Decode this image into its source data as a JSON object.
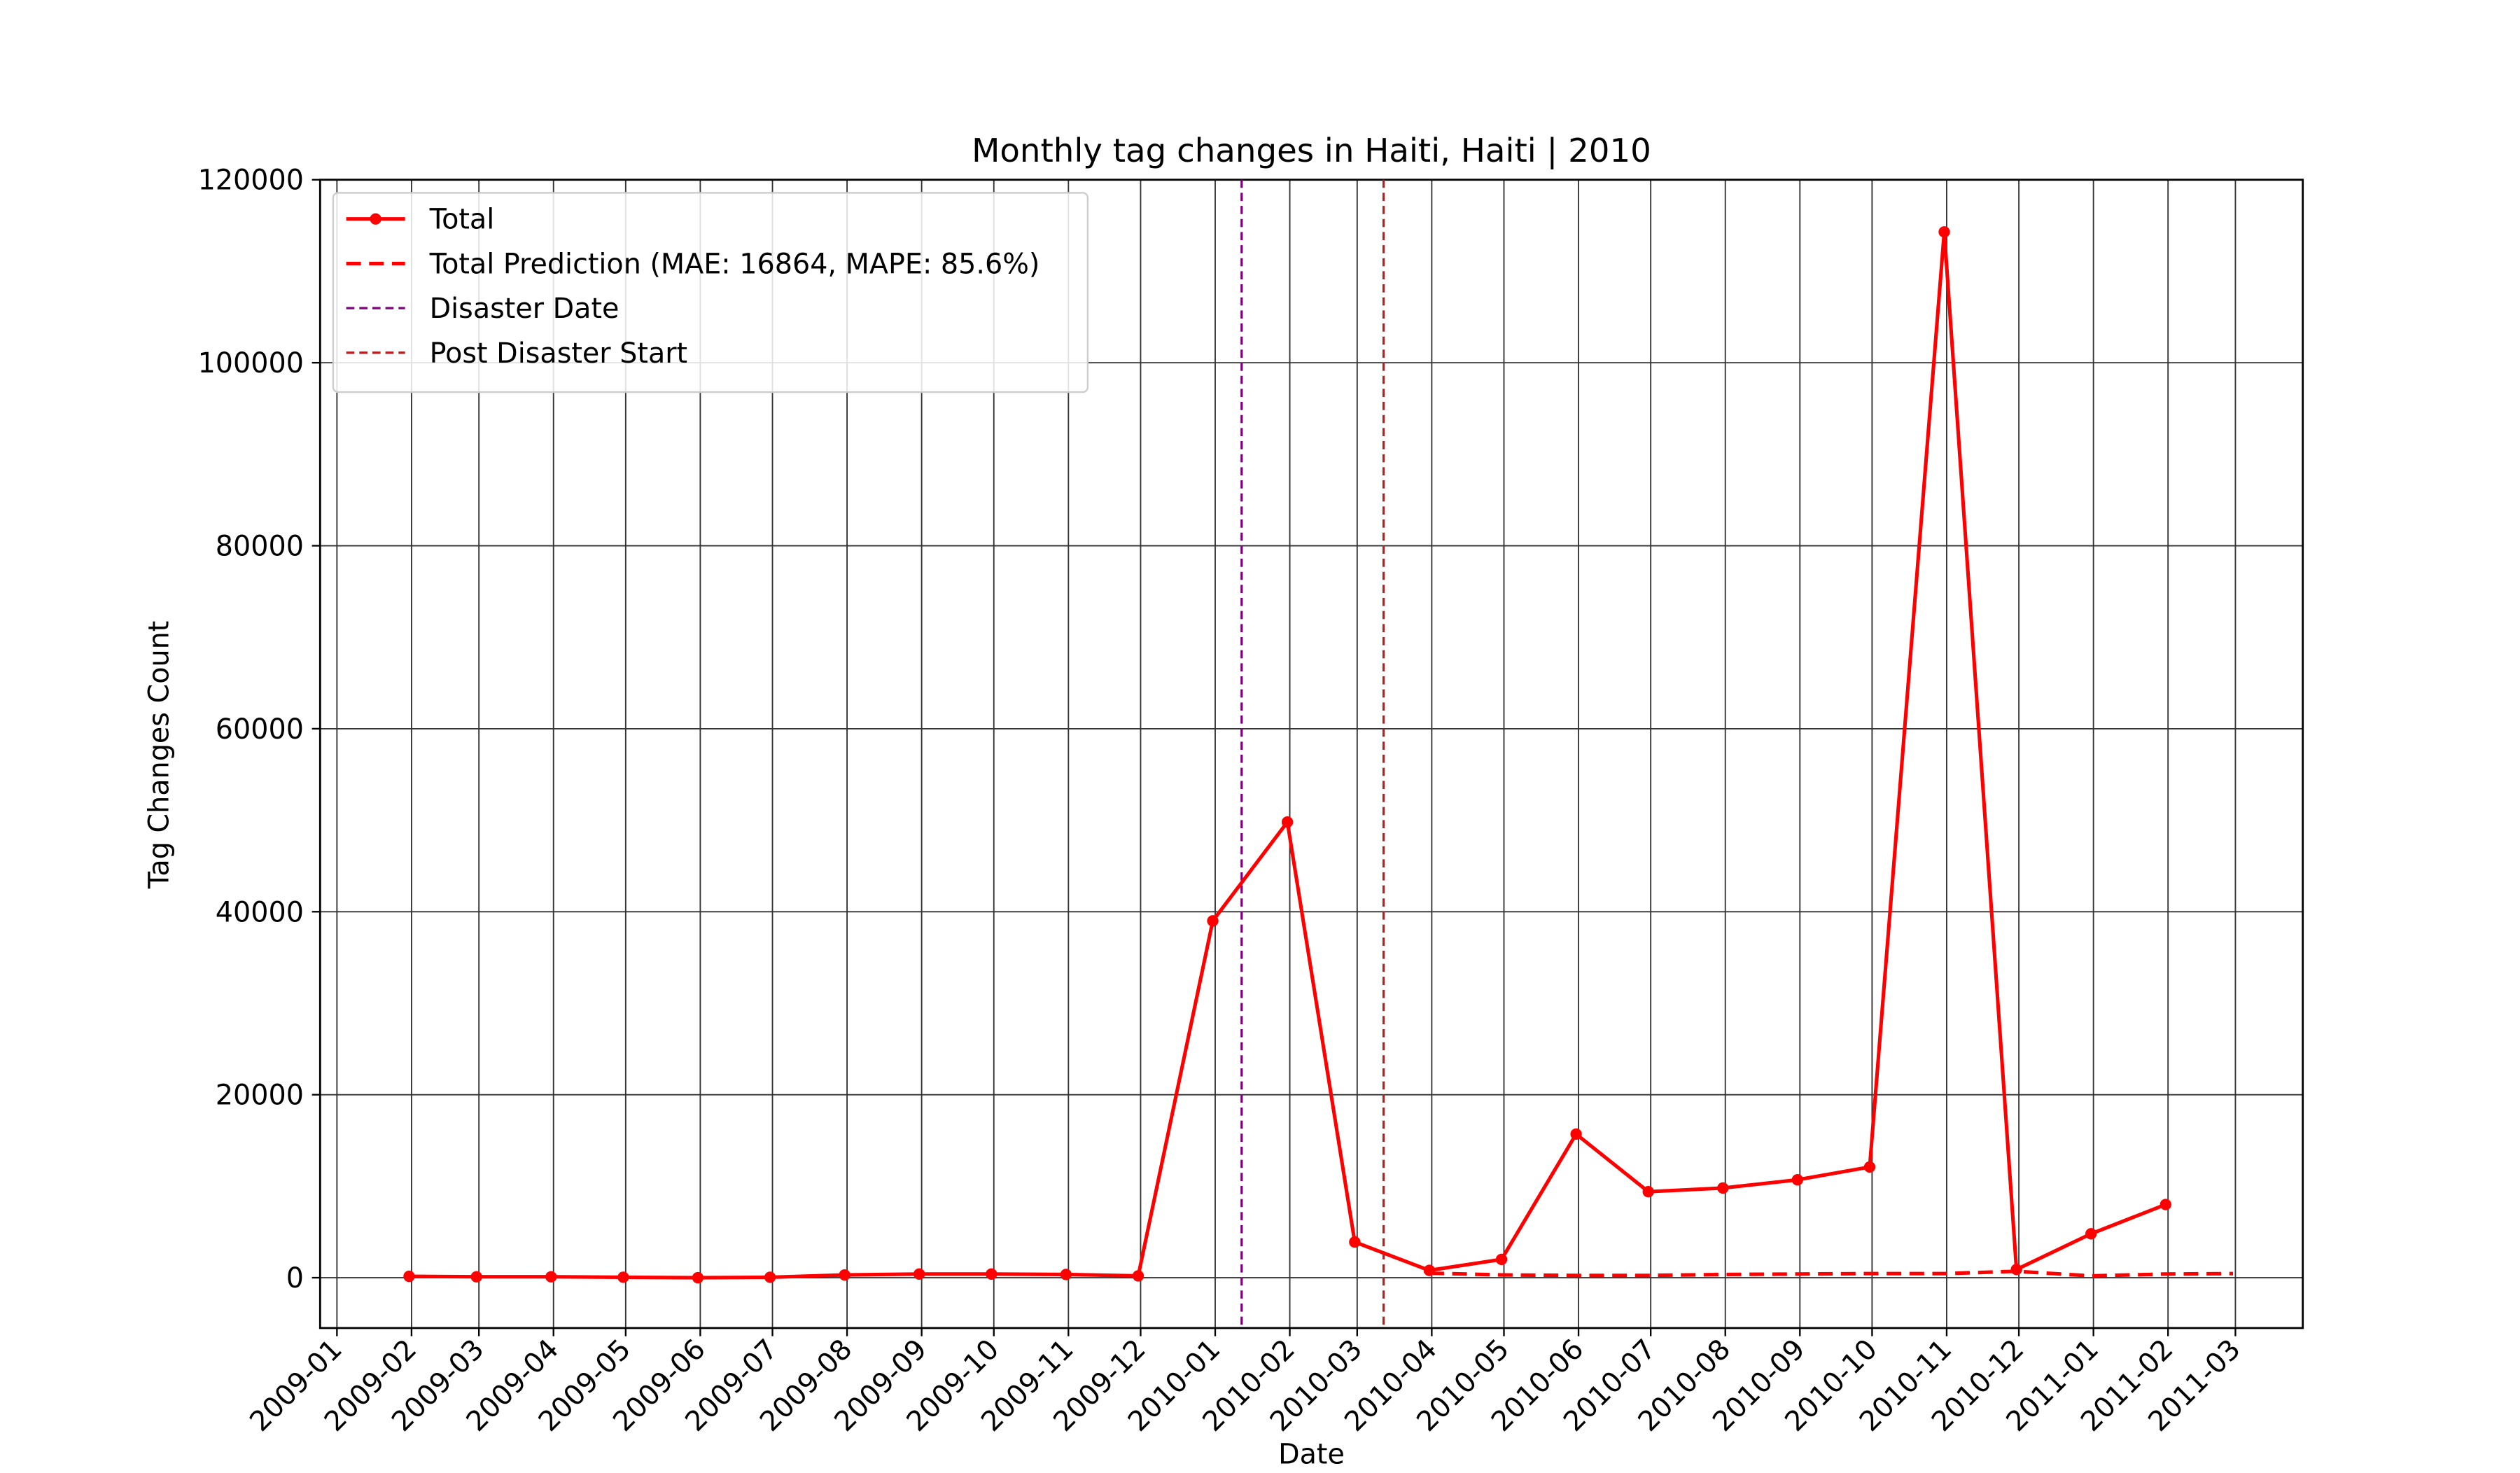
{
  "chart_data": {
    "type": "line",
    "title": "Monthly tag changes in Haiti, Haiti | 2010",
    "x_label": "Date",
    "y_label": "Tag Changes Count",
    "series": [
      {
        "name": "Total",
        "color": "#ff0000",
        "style": "solid",
        "marker": true,
        "x": [
          "2009-01",
          "2009-02",
          "2009-03",
          "2009-04",
          "2009-05",
          "2009-06",
          "2009-07",
          "2009-08",
          "2009-09",
          "2009-10",
          "2009-11",
          "2009-12",
          "2010-01",
          "2010-02",
          "2010-03",
          "2010-04",
          "2010-05",
          "2010-06",
          "2010-07",
          "2010-08",
          "2010-09",
          "2010-10",
          "2010-11",
          "2010-12",
          "2011-01"
        ],
        "values": [
          150,
          100,
          100,
          50,
          0,
          50,
          300,
          400,
          400,
          350,
          200,
          39000,
          49800,
          3900,
          800,
          2000,
          15700,
          9400,
          9800,
          10700,
          12100,
          114300,
          900,
          4800,
          8000
        ]
      },
      {
        "name": "Total Prediction (MAE: 16864, MAPE: 85.6%)",
        "color": "#ff0000",
        "style": "dashed",
        "marker": false,
        "x": [
          "2010-03",
          "2010-04",
          "2010-05",
          "2010-06",
          "2010-07",
          "2010-08",
          "2010-09",
          "2010-10",
          "2010-11",
          "2010-12",
          "2011-01",
          "2011-02"
        ],
        "values": [
          500,
          300,
          250,
          250,
          350,
          400,
          450,
          450,
          700,
          200,
          400,
          450
        ]
      }
    ],
    "vlines": [
      {
        "label": "Disaster Date",
        "x": "2010-01-12",
        "color": "#800080"
      },
      {
        "label": "Post Disaster Start",
        "x": "2010-03-12",
        "color": "#b22222"
      }
    ],
    "xlim": [
      "2008-12-25",
      "2011-03-29"
    ],
    "xticks": [
      "2009-01",
      "2009-02",
      "2009-03",
      "2009-04",
      "2009-05",
      "2009-06",
      "2009-07",
      "2009-08",
      "2009-09",
      "2009-10",
      "2009-11",
      "2009-12",
      "2010-01",
      "2010-02",
      "2010-03",
      "2010-04",
      "2010-05",
      "2010-06",
      "2010-07",
      "2010-08",
      "2010-09",
      "2010-10",
      "2010-11",
      "2010-12",
      "2011-01",
      "2011-02",
      "2011-03"
    ],
    "ylim": [
      -5500,
      120000
    ],
    "yticks": [
      0,
      20000,
      40000,
      60000,
      80000,
      100000,
      120000
    ],
    "grid": true,
    "legend": "upper left"
  }
}
